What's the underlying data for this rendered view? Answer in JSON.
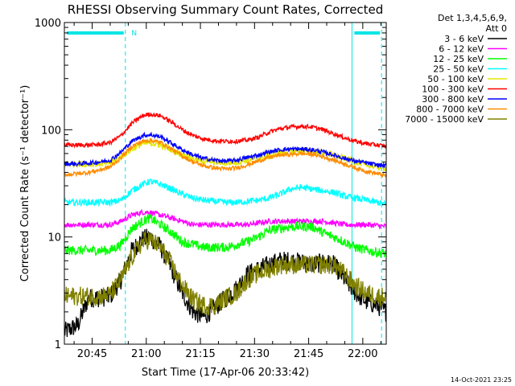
{
  "chart_data": {
    "type": "line",
    "title": "RHESSI Observing Summary Count Rates, Corrected",
    "xlabel": "Start Time (17-Apr-06 20:33:42)",
    "ylabel": "Corrected Count Rate (s⁻¹ detector⁻¹)",
    "yscale": "log",
    "ylim": [
      1,
      1000
    ],
    "xlim_minutes": [
      4.3,
      93.5
    ],
    "x_ticks": [
      {
        "minute": 12,
        "label": "20:45"
      },
      {
        "minute": 27,
        "label": "21:00"
      },
      {
        "minute": 42,
        "label": "21:15"
      },
      {
        "minute": 57,
        "label": "21:30"
      },
      {
        "minute": 72,
        "label": "21:45"
      },
      {
        "minute": 87,
        "label": "22:00"
      }
    ],
    "y_ticks": [
      {
        "value": 1,
        "label": "1"
      },
      {
        "value": 10,
        "label": "10"
      },
      {
        "value": 100,
        "label": "100"
      },
      {
        "value": 1000,
        "label": "1000"
      }
    ],
    "legend_header": [
      "Det 1,3,4,5,6,9,",
      "Att 0"
    ],
    "legend_placement": "right",
    "night_markers": {
      "solid_minutes": [
        4.3,
        84
      ],
      "dashed_minutes": [
        21.2,
        92.2
      ],
      "bars": [
        [
          4.3,
          21.2
        ],
        [
          84,
          92.2
        ]
      ],
      "label": "N",
      "label_minute": 22,
      "color": "#00e5e5"
    },
    "footer": "14-Oct-2021 23:25",
    "series": [
      {
        "name": "3 - 6 keV",
        "color": "#000000",
        "points": [
          [
            4.3,
            1.3
          ],
          [
            8,
            1.5
          ],
          [
            11,
            2.7
          ],
          [
            14,
            2.7
          ],
          [
            17,
            2.8
          ],
          [
            20,
            4
          ],
          [
            23,
            7.5
          ],
          [
            26,
            9.5
          ],
          [
            28,
            10
          ],
          [
            31,
            8
          ],
          [
            34,
            5
          ],
          [
            37,
            3
          ],
          [
            40,
            2
          ],
          [
            43,
            1.8
          ],
          [
            46,
            2.2
          ],
          [
            49,
            2.7
          ],
          [
            52,
            3.3
          ],
          [
            55,
            4.5
          ],
          [
            58,
            5
          ],
          [
            61,
            5.5
          ],
          [
            64,
            6
          ],
          [
            67,
            6
          ],
          [
            70,
            5.8
          ],
          [
            73,
            5.5
          ],
          [
            76,
            5.8
          ],
          [
            79,
            5.5
          ],
          [
            82,
            4
          ],
          [
            85,
            3
          ],
          [
            88,
            2.5
          ],
          [
            91,
            2.3
          ],
          [
            93.5,
            2
          ]
        ]
      },
      {
        "name": "6 - 12 keV",
        "color": "#ff00ff",
        "points": [
          [
            4.3,
            13
          ],
          [
            8,
            13
          ],
          [
            11,
            13
          ],
          [
            14,
            13
          ],
          [
            17,
            13
          ],
          [
            20,
            14
          ],
          [
            23,
            16
          ],
          [
            26,
            17
          ],
          [
            28,
            17
          ],
          [
            31,
            16
          ],
          [
            34,
            15
          ],
          [
            37,
            14
          ],
          [
            40,
            13
          ],
          [
            43,
            13
          ],
          [
            46,
            13
          ],
          [
            49,
            13
          ],
          [
            52,
            13
          ],
          [
            55,
            13
          ],
          [
            58,
            13.5
          ],
          [
            61,
            14
          ],
          [
            64,
            14
          ],
          [
            67,
            14
          ],
          [
            70,
            14
          ],
          [
            73,
            14
          ],
          [
            76,
            14
          ],
          [
            79,
            13.5
          ],
          [
            82,
            13
          ],
          [
            85,
            13
          ],
          [
            88,
            13
          ],
          [
            91,
            12.8
          ],
          [
            93.5,
            12.5
          ]
        ]
      },
      {
        "name": "12 - 25 keV",
        "color": "#00ff00",
        "points": [
          [
            4.3,
            7.5
          ],
          [
            8,
            7.5
          ],
          [
            11,
            7.5
          ],
          [
            14,
            7.5
          ],
          [
            17,
            7.5
          ],
          [
            20,
            8.5
          ],
          [
            23,
            12
          ],
          [
            26,
            14
          ],
          [
            28,
            15
          ],
          [
            31,
            13
          ],
          [
            34,
            11
          ],
          [
            37,
            9
          ],
          [
            40,
            8.5
          ],
          [
            43,
            8
          ],
          [
            46,
            8
          ],
          [
            49,
            8
          ],
          [
            52,
            8.5
          ],
          [
            55,
            9
          ],
          [
            58,
            10
          ],
          [
            61,
            11.5
          ],
          [
            64,
            12
          ],
          [
            67,
            12.5
          ],
          [
            70,
            12.5
          ],
          [
            73,
            12.5
          ],
          [
            76,
            11
          ],
          [
            79,
            10
          ],
          [
            82,
            9
          ],
          [
            85,
            8
          ],
          [
            88,
            7.5
          ],
          [
            91,
            7.2
          ],
          [
            93.5,
            7
          ]
        ]
      },
      {
        "name": "25 - 50 keV",
        "color": "#00ffff",
        "points": [
          [
            4.3,
            21
          ],
          [
            8,
            21
          ],
          [
            11,
            21
          ],
          [
            14,
            21
          ],
          [
            17,
            21
          ],
          [
            20,
            22
          ],
          [
            23,
            27
          ],
          [
            26,
            31
          ],
          [
            28,
            33
          ],
          [
            31,
            31
          ],
          [
            34,
            28
          ],
          [
            37,
            25
          ],
          [
            40,
            23
          ],
          [
            43,
            22
          ],
          [
            46,
            21.5
          ],
          [
            49,
            21
          ],
          [
            52,
            21
          ],
          [
            55,
            21.5
          ],
          [
            58,
            22
          ],
          [
            61,
            23
          ],
          [
            64,
            25
          ],
          [
            67,
            28
          ],
          [
            70,
            29
          ],
          [
            73,
            28
          ],
          [
            76,
            27
          ],
          [
            79,
            26
          ],
          [
            82,
            24
          ],
          [
            85,
            23
          ],
          [
            88,
            22
          ],
          [
            91,
            21
          ],
          [
            93.5,
            20
          ]
        ]
      },
      {
        "name": "50 - 100 keV",
        "color": "#e5e500",
        "points": [
          [
            4.3,
            48
          ],
          [
            8,
            48
          ],
          [
            11,
            48
          ],
          [
            14,
            48
          ],
          [
            17,
            49
          ],
          [
            20,
            56
          ],
          [
            23,
            66
          ],
          [
            26,
            74
          ],
          [
            28,
            75
          ],
          [
            31,
            72
          ],
          [
            34,
            65
          ],
          [
            37,
            58
          ],
          [
            40,
            54
          ],
          [
            43,
            51
          ],
          [
            46,
            50
          ],
          [
            49,
            49
          ],
          [
            52,
            50
          ],
          [
            55,
            52
          ],
          [
            58,
            54
          ],
          [
            61,
            57
          ],
          [
            64,
            61
          ],
          [
            67,
            63
          ],
          [
            70,
            64
          ],
          [
            73,
            63
          ],
          [
            76,
            61
          ],
          [
            79,
            58
          ],
          [
            82,
            54
          ],
          [
            85,
            50
          ],
          [
            88,
            47
          ],
          [
            91,
            45
          ],
          [
            93.5,
            44
          ]
        ]
      },
      {
        "name": "100 - 300 keV",
        "color": "#ff0000",
        "points": [
          [
            4.3,
            72
          ],
          [
            8,
            72
          ],
          [
            11,
            72
          ],
          [
            14,
            73
          ],
          [
            17,
            76
          ],
          [
            20,
            88
          ],
          [
            23,
            115
          ],
          [
            26,
            135
          ],
          [
            28,
            140
          ],
          [
            31,
            135
          ],
          [
            34,
            118
          ],
          [
            37,
            100
          ],
          [
            40,
            88
          ],
          [
            43,
            82
          ],
          [
            46,
            79
          ],
          [
            49,
            78
          ],
          [
            52,
            78
          ],
          [
            55,
            80
          ],
          [
            58,
            85
          ],
          [
            61,
            95
          ],
          [
            64,
            102
          ],
          [
            67,
            106
          ],
          [
            70,
            108
          ],
          [
            73,
            106
          ],
          [
            76,
            100
          ],
          [
            79,
            92
          ],
          [
            82,
            84
          ],
          [
            85,
            78
          ],
          [
            88,
            74
          ],
          [
            91,
            72
          ],
          [
            93.5,
            70
          ]
        ]
      },
      {
        "name": "300 - 800 keV",
        "color": "#0000ff",
        "points": [
          [
            4.3,
            48
          ],
          [
            8,
            48
          ],
          [
            11,
            49
          ],
          [
            14,
            50
          ],
          [
            17,
            52
          ],
          [
            20,
            62
          ],
          [
            23,
            78
          ],
          [
            26,
            88
          ],
          [
            28,
            90
          ],
          [
            31,
            86
          ],
          [
            34,
            75
          ],
          [
            37,
            65
          ],
          [
            40,
            58
          ],
          [
            43,
            54
          ],
          [
            46,
            52
          ],
          [
            49,
            51
          ],
          [
            52,
            52
          ],
          [
            55,
            55
          ],
          [
            58,
            58
          ],
          [
            61,
            62
          ],
          [
            64,
            65
          ],
          [
            67,
            66
          ],
          [
            70,
            66
          ],
          [
            73,
            65
          ],
          [
            76,
            62
          ],
          [
            79,
            58
          ],
          [
            82,
            54
          ],
          [
            85,
            51
          ],
          [
            88,
            49
          ],
          [
            91,
            47
          ],
          [
            93.5,
            46
          ]
        ]
      },
      {
        "name": "800 - 7000 keV",
        "color": "#ff8c00",
        "points": [
          [
            4.3,
            38
          ],
          [
            8,
            39
          ],
          [
            11,
            40
          ],
          [
            14,
            42
          ],
          [
            17,
            45
          ],
          [
            20,
            55
          ],
          [
            23,
            70
          ],
          [
            26,
            78
          ],
          [
            28,
            80
          ],
          [
            31,
            76
          ],
          [
            34,
            66
          ],
          [
            37,
            57
          ],
          [
            40,
            50
          ],
          [
            43,
            46
          ],
          [
            46,
            44
          ],
          [
            49,
            43
          ],
          [
            52,
            44
          ],
          [
            55,
            47
          ],
          [
            58,
            51
          ],
          [
            61,
            55
          ],
          [
            64,
            58
          ],
          [
            67,
            59
          ],
          [
            70,
            60
          ],
          [
            73,
            59
          ],
          [
            76,
            56
          ],
          [
            79,
            52
          ],
          [
            82,
            48
          ],
          [
            85,
            44
          ],
          [
            88,
            41
          ],
          [
            91,
            39
          ],
          [
            93.5,
            37
          ]
        ]
      },
      {
        "name": "7000 - 15000 keV",
        "color": "#808000",
        "points": [
          [
            4.3,
            2.8
          ],
          [
            8,
            2.8
          ],
          [
            11,
            2.8
          ],
          [
            14,
            2.8
          ],
          [
            17,
            2.9
          ],
          [
            20,
            4
          ],
          [
            23,
            6.5
          ],
          [
            26,
            9
          ],
          [
            28,
            9.5
          ],
          [
            31,
            8
          ],
          [
            34,
            5.5
          ],
          [
            37,
            3.5
          ],
          [
            40,
            2.6
          ],
          [
            43,
            2.3
          ],
          [
            46,
            2.3
          ],
          [
            49,
            2.7
          ],
          [
            52,
            3
          ],
          [
            55,
            4
          ],
          [
            58,
            4.6
          ],
          [
            61,
            5
          ],
          [
            64,
            5.5
          ],
          [
            67,
            5.5
          ],
          [
            70,
            5.5
          ],
          [
            73,
            5.5
          ],
          [
            76,
            5.5
          ],
          [
            79,
            5.5
          ],
          [
            82,
            4.5
          ],
          [
            85,
            3.5
          ],
          [
            88,
            3
          ],
          [
            91,
            2.8
          ],
          [
            93.5,
            2.8
          ]
        ]
      }
    ]
  }
}
